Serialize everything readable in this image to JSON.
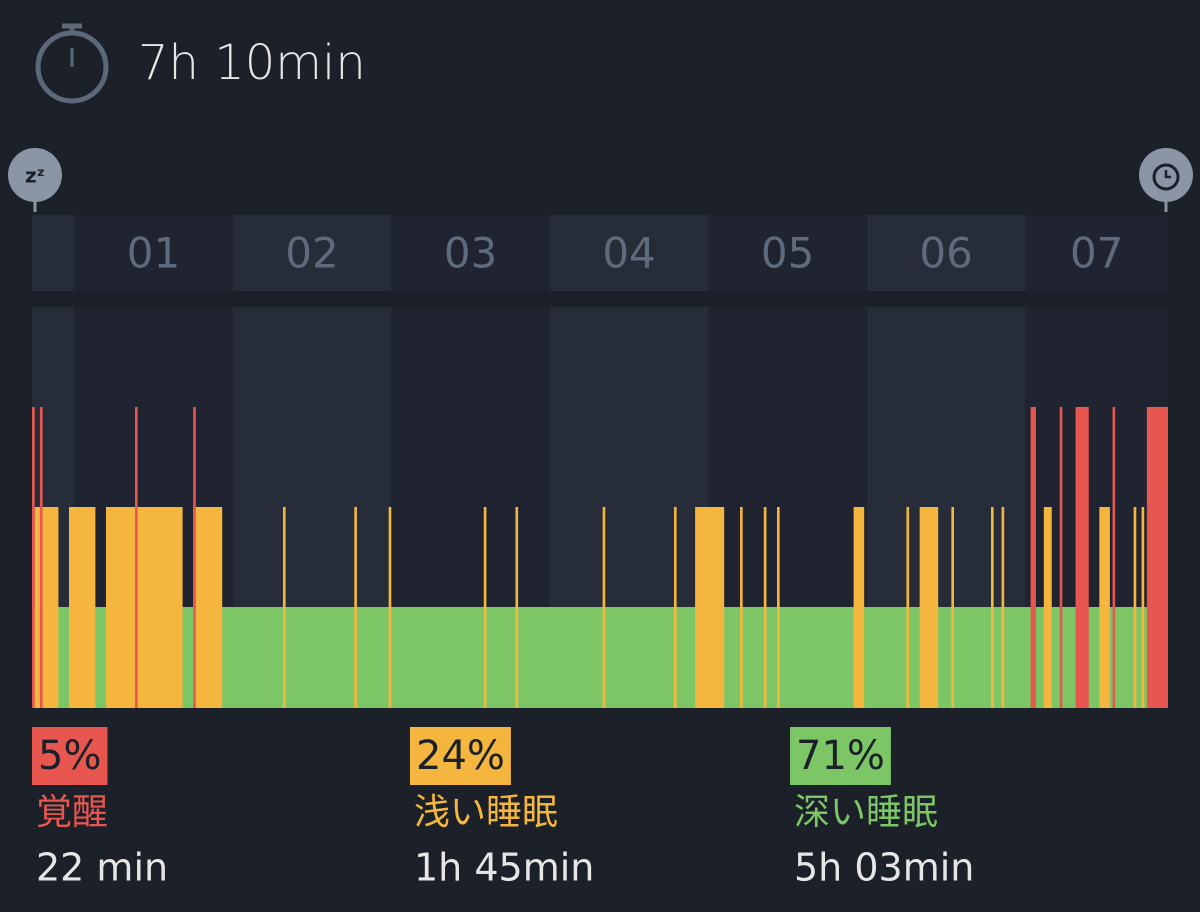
{
  "header": {
    "title": "7h 10min"
  },
  "timeline": {
    "xlim": [
      0,
      430
    ],
    "hour_ticks": [
      {
        "value": 16,
        "label": "01"
      },
      {
        "value": 76,
        "label": "02"
      },
      {
        "value": 136,
        "label": "03"
      },
      {
        "value": 196,
        "label": "04"
      },
      {
        "value": 256,
        "label": "05"
      },
      {
        "value": 316,
        "label": "06"
      },
      {
        "value": 376,
        "label": "07"
      }
    ]
  },
  "hypnogram": {
    "light": [
      [
        1,
        10
      ],
      [
        14,
        24
      ],
      [
        28,
        57
      ],
      [
        61,
        72
      ],
      [
        95,
        96
      ],
      [
        122,
        123
      ],
      [
        135,
        136
      ],
      [
        171,
        172
      ],
      [
        183,
        184
      ],
      [
        216,
        217
      ],
      [
        243,
        244
      ],
      [
        251,
        262
      ],
      [
        268,
        269
      ],
      [
        277,
        278
      ],
      [
        282,
        283
      ],
      [
        311,
        315
      ],
      [
        331,
        332
      ],
      [
        336,
        343
      ],
      [
        348,
        349
      ],
      [
        363,
        364
      ],
      [
        367,
        368
      ],
      [
        383,
        386
      ],
      [
        404,
        408
      ],
      [
        417,
        418
      ],
      [
        420,
        421
      ]
    ],
    "awake": [
      [
        0,
        1
      ],
      [
        3,
        4
      ],
      [
        39,
        40
      ],
      [
        61,
        62
      ],
      [
        378,
        380
      ],
      [
        389,
        390
      ],
      [
        395,
        400
      ],
      [
        409,
        410
      ],
      [
        422,
        430
      ]
    ]
  },
  "stats": [
    {
      "percent": "5%",
      "label": "覚醒",
      "duration": "22 min",
      "color": "#e8574f"
    },
    {
      "percent": "24%",
      "label": "浅い睡眠",
      "duration": "1h 45min",
      "color": "#f4b63f"
    },
    {
      "percent": "71%",
      "label": "深い睡眠",
      "duration": "5h 03min",
      "color": "#7cc665"
    }
  ]
}
